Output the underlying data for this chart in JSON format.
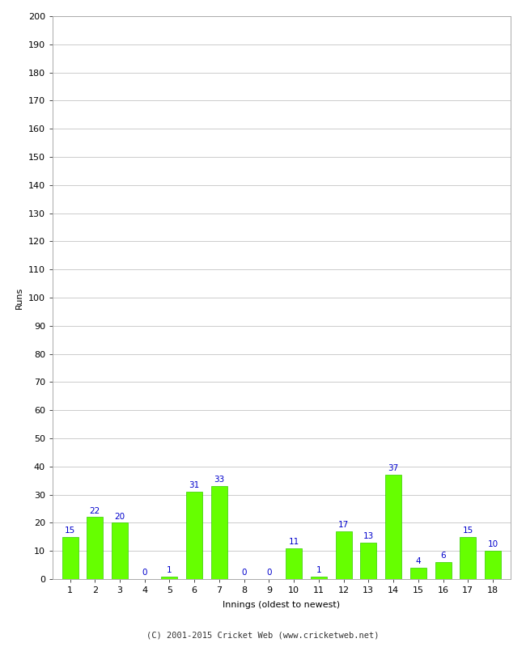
{
  "innings": [
    1,
    2,
    3,
    4,
    5,
    6,
    7,
    8,
    9,
    10,
    11,
    12,
    13,
    14,
    15,
    16,
    17,
    18
  ],
  "runs": [
    15,
    22,
    20,
    0,
    1,
    31,
    33,
    0,
    0,
    11,
    1,
    17,
    13,
    37,
    4,
    6,
    15,
    10
  ],
  "bar_color": "#66ff00",
  "bar_edge_color": "#33cc00",
  "label_color": "#0000cc",
  "ylabel": "Runs",
  "xlabel": "Innings (oldest to newest)",
  "ylim": [
    0,
    200
  ],
  "yticks": [
    0,
    10,
    20,
    30,
    40,
    50,
    60,
    70,
    80,
    90,
    100,
    110,
    120,
    130,
    140,
    150,
    160,
    170,
    180,
    190,
    200
  ],
  "background_color": "#ffffff",
  "grid_color": "#cccccc",
  "footer": "(C) 2001-2015 Cricket Web (www.cricketweb.net)",
  "label_fontsize": 7.5,
  "axis_fontsize": 8,
  "ylabel_fontsize": 8,
  "footer_fontsize": 7.5,
  "bar_width": 0.65
}
